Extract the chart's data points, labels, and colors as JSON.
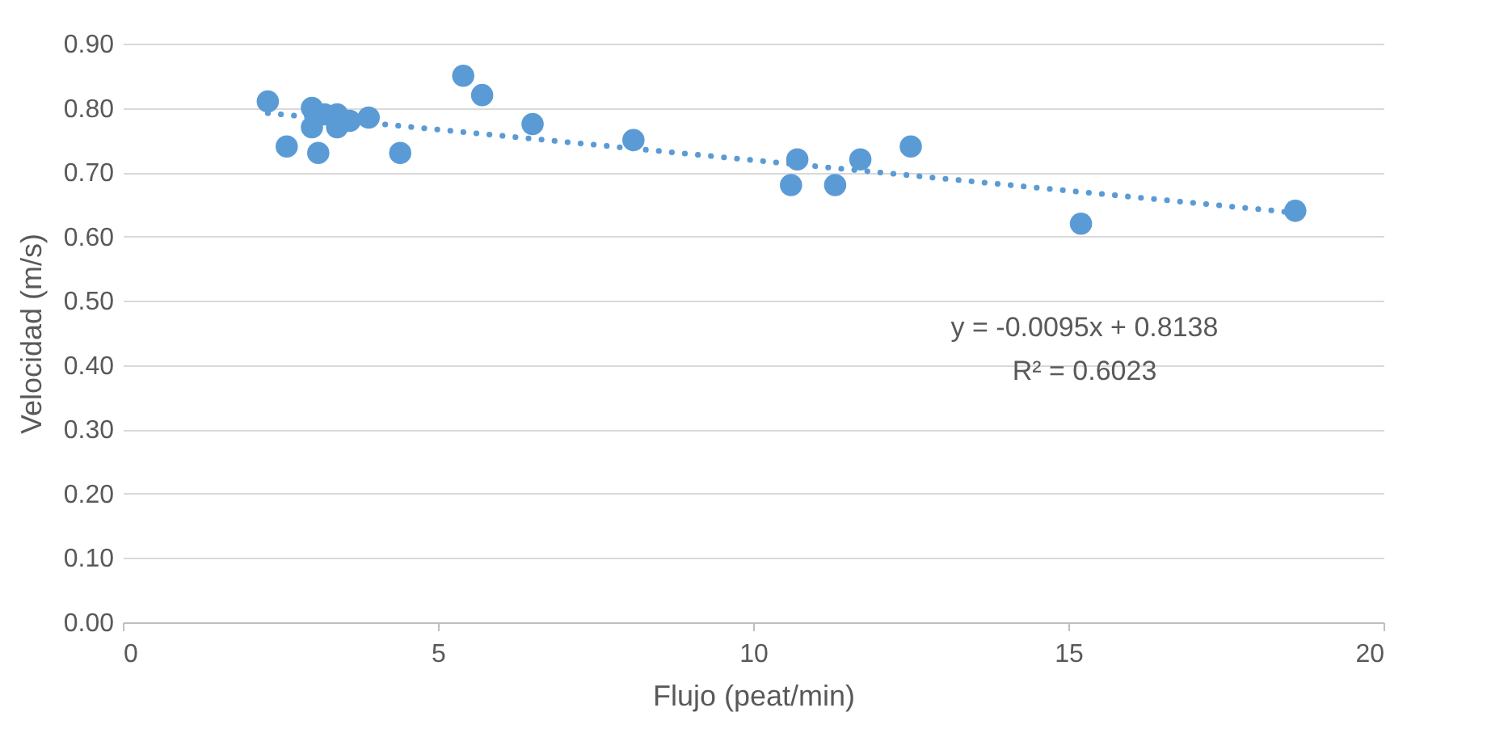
{
  "chart_data": {
    "type": "scatter",
    "xlabel": "Flujo (peat/min)",
    "ylabel": "Velocidad (m/s)",
    "xlim": [
      0,
      20
    ],
    "xticks": [
      0,
      5,
      10,
      15,
      20
    ],
    "ylim": [
      0,
      0.9
    ],
    "yticks": [
      {
        "value": 0,
        "label": "0.00"
      },
      {
        "value": 0.1,
        "label": "0.10"
      },
      {
        "value": 0.2,
        "label": "0.20"
      },
      {
        "value": 0.3,
        "label": "0.30"
      },
      {
        "value": 0.4,
        "label": "0.40"
      },
      {
        "value": 0.5,
        "label": "0.50"
      },
      {
        "value": 0.6,
        "label": "0.60"
      },
      {
        "value": 0.7,
        "label": "0.70"
      },
      {
        "value": 0.8,
        "label": "0.80"
      },
      {
        "value": 0.9,
        "label": "0.90"
      }
    ],
    "grid": "y",
    "series": [
      {
        "marker": "circle",
        "color": "#5b9bd5",
        "x": [
          2.3,
          2.6,
          3.0,
          3.0,
          3.1,
          3.2,
          3.4,
          3.4,
          3.6,
          3.9,
          4.4,
          5.4,
          5.7,
          6.5,
          8.1,
          10.6,
          10.7,
          11.3,
          11.7,
          12.5,
          15.2,
          18.6
        ],
        "values": [
          0.81,
          0.74,
          0.8,
          0.77,
          0.73,
          0.79,
          0.79,
          0.77,
          0.78,
          0.785,
          0.73,
          0.85,
          0.82,
          0.775,
          0.75,
          0.68,
          0.72,
          0.68,
          0.72,
          0.74,
          0.62,
          0.64
        ]
      },
      {
        "type": "line",
        "color": "#5b9bd5",
        "line_style": "dotted",
        "x": [
          2.3,
          18.6
        ],
        "values": [
          0.792,
          0.637
        ]
      }
    ],
    "annotations": [
      "y = -0.0095x + 0.8138",
      "R² = 0.6023"
    ]
  }
}
